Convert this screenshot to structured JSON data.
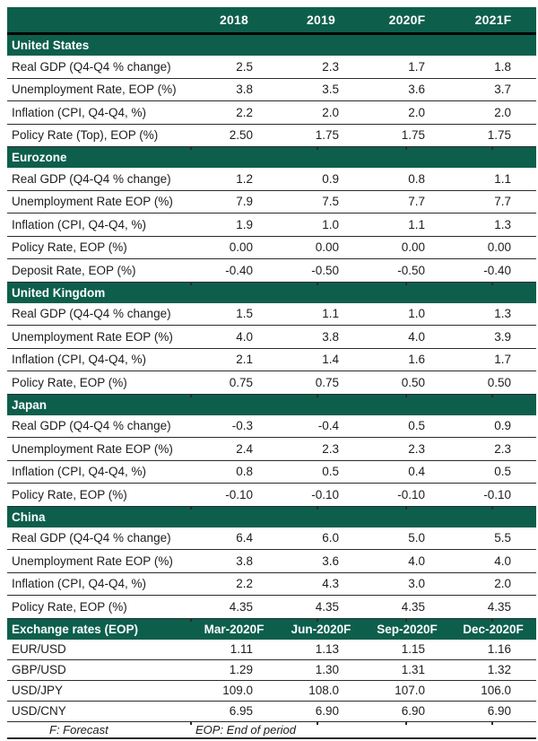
{
  "header": {
    "columns": [
      "2018",
      "2019",
      "2020F",
      "2021F"
    ]
  },
  "sections": [
    {
      "title": "United States",
      "rows": [
        {
          "label": "Real GDP (Q4-Q4 % change)",
          "values": [
            "2.5",
            "2.3",
            "1.7",
            "1.8"
          ]
        },
        {
          "label": "Unemployment Rate, EOP (%)",
          "values": [
            "3.8",
            "3.5",
            "3.6",
            "3.7"
          ]
        },
        {
          "label": "Inflation (CPI, Q4-Q4, %)",
          "values": [
            "2.2",
            "2.0",
            "2.0",
            "2.0"
          ]
        },
        {
          "label": "Policy Rate (Top), EOP (%)",
          "values": [
            "2.50",
            "1.75",
            "1.75",
            "1.75"
          ]
        }
      ]
    },
    {
      "title": "Eurozone",
      "rows": [
        {
          "label": "Real GDP (Q4-Q4 % change)",
          "values": [
            "1.2",
            "0.9",
            "0.8",
            "1.1"
          ]
        },
        {
          "label": "Unemployment Rate EOP (%)",
          "values": [
            "7.9",
            "7.5",
            "7.7",
            "7.7"
          ]
        },
        {
          "label": "Inflation (CPI, Q4-Q4, %)",
          "values": [
            "1.9",
            "1.0",
            "1.1",
            "1.3"
          ]
        },
        {
          "label": "Policy Rate, EOP (%)",
          "values": [
            "0.00",
            "0.00",
            "0.00",
            "0.00"
          ]
        },
        {
          "label": "Deposit Rate, EOP (%)",
          "values": [
            "-0.40",
            "-0.50",
            "-0.50",
            "-0.40"
          ]
        }
      ]
    },
    {
      "title": "United Kingdom",
      "rows": [
        {
          "label": "Real GDP (Q4-Q4 % change)",
          "values": [
            "1.5",
            "1.1",
            "1.0",
            "1.3"
          ]
        },
        {
          "label": "Unemployment Rate EOP (%)",
          "values": [
            "4.0",
            "3.8",
            "4.0",
            "3.9"
          ]
        },
        {
          "label": "Inflation (CPI, Q4-Q4, %)",
          "values": [
            "2.1",
            "1.4",
            "1.6",
            "1.7"
          ]
        },
        {
          "label": "Policy Rate, EOP (%)",
          "values": [
            "0.75",
            "0.75",
            "0.50",
            "0.50"
          ]
        }
      ]
    },
    {
      "title": "Japan",
      "rows": [
        {
          "label": "Real GDP (Q4-Q4 % change)",
          "values": [
            "-0.3",
            "-0.4",
            "0.5",
            "0.9"
          ]
        },
        {
          "label": "Unemployment Rate EOP (%)",
          "values": [
            "2.4",
            "2.3",
            "2.3",
            "2.3"
          ]
        },
        {
          "label": "Inflation (CPI, Q4-Q4, %)",
          "values": [
            "0.8",
            "0.5",
            "0.4",
            "0.5"
          ]
        },
        {
          "label": "Policy Rate, EOP (%)",
          "values": [
            "-0.10",
            "-0.10",
            "-0.10",
            "-0.10"
          ]
        }
      ]
    },
    {
      "title": "China",
      "rows": [
        {
          "label": "Real GDP (Q4-Q4 % change)",
          "values": [
            "6.4",
            "6.0",
            "5.0",
            "5.5"
          ]
        },
        {
          "label": "Unemployment Rate EOP (%)",
          "values": [
            "3.8",
            "3.6",
            "4.0",
            "4.0"
          ]
        },
        {
          "label": "Inflation (CPI, Q4-Q4, %)",
          "values": [
            "2.2",
            "4.3",
            "3.0",
            "2.0"
          ]
        },
        {
          "label": "Policy Rate, EOP (%)",
          "values": [
            "4.35",
            "4.35",
            "4.35",
            "4.35"
          ]
        }
      ]
    },
    {
      "title": "Exchange rates (EOP)",
      "column_headers": [
        "Mar-2020F",
        "Jun-2020F",
        "Sep-2020F",
        "Dec-2020F"
      ],
      "rows": [
        {
          "label": "EUR/USD",
          "values": [
            "1.11",
            "1.13",
            "1.15",
            "1.16"
          ]
        },
        {
          "label": "GBP/USD",
          "values": [
            "1.29",
            "1.30",
            "1.31",
            "1.32"
          ]
        },
        {
          "label": "USD/JPY",
          "values": [
            "109.0",
            "108.0",
            "107.0",
            "106.0"
          ]
        },
        {
          "label": "USD/CNY",
          "values": [
            "6.95",
            "6.90",
            "6.90",
            "6.90"
          ]
        }
      ]
    }
  ],
  "footer": {
    "forecast_note": "F: Forecast",
    "eop_note": "EOP: End of period"
  },
  "colors": {
    "header_green": "#0d5f4c",
    "line_dark": "#2b2b2b"
  }
}
